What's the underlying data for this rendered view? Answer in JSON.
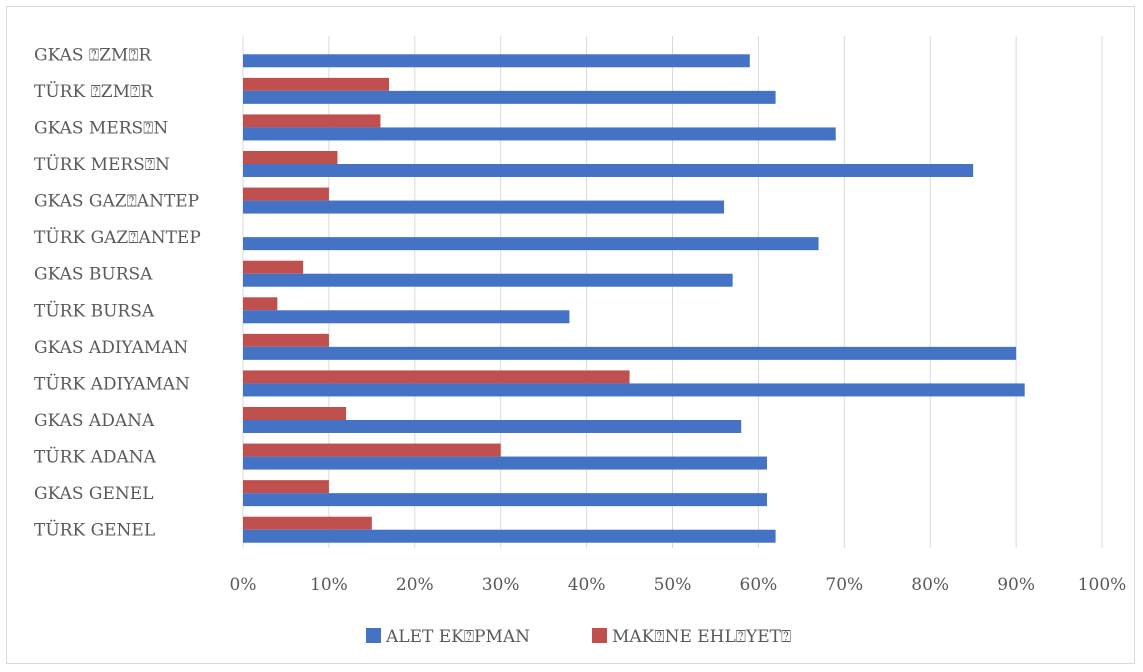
{
  "chart_data": {
    "type": "bar",
    "orientation": "horizontal",
    "categories": [
      "GKAS ⍰ZM⍰R",
      "TÜRK ⍰ZM⍰R",
      "GKAS MERS⍰N",
      "TÜRK MERS⍰N",
      "GKAS GAZ⍰ANTEP",
      "TÜRK GAZ⍰ANTEP",
      "GKAS BURSA",
      "TÜRK BURSA",
      "GKAS ADIYAMAN",
      "TÜRK ADIYAMAN",
      "GKAS ADANA",
      "TÜRK ADANA",
      "GKAS GENEL",
      "TÜRK GENEL"
    ],
    "series": [
      {
        "name": "ALET EK⍰PMAN",
        "color": "#4472c4",
        "values": [
          59,
          62,
          69,
          85,
          56,
          67,
          57,
          38,
          90,
          91,
          58,
          61,
          61,
          62
        ]
      },
      {
        "name": "MAK⍰NE EHL⍰YET⍰",
        "color": "#c0504d",
        "values": [
          0,
          17,
          16,
          11,
          10,
          0,
          7,
          4,
          10,
          45,
          12,
          30,
          10,
          15
        ]
      }
    ],
    "xlim": [
      0,
      100
    ],
    "xticks": [
      "0%",
      "10%",
      "20%",
      "30%",
      "40%",
      "50%",
      "60%",
      "70%",
      "80%",
      "90%",
      "100%"
    ],
    "grid": true,
    "legend_position": "bottom",
    "title": "",
    "xlabel": "",
    "ylabel": ""
  }
}
